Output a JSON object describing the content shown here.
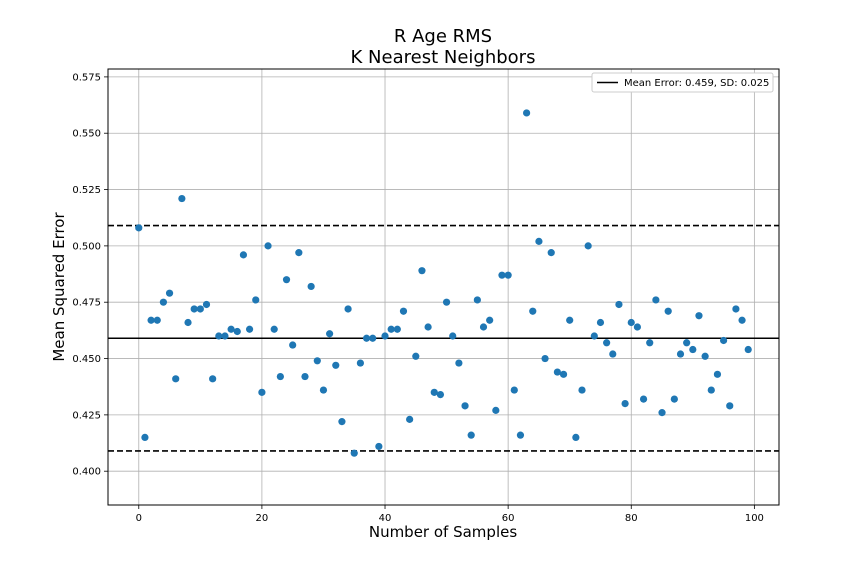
{
  "chart_data": {
    "type": "scatter",
    "title_lines": [
      "R Age RMS",
      "K Nearest Neighbors"
    ],
    "xlabel": "Number of Samples",
    "ylabel": "Mean Squared Error",
    "xlim": [
      -5,
      104
    ],
    "ylim": [
      0.385,
      0.5785
    ],
    "xticks": [
      0,
      20,
      40,
      60,
      80,
      100
    ],
    "yticks": [
      0.4,
      0.425,
      0.45,
      0.475,
      0.5,
      0.525,
      0.55,
      0.575
    ],
    "xtick_labels": [
      "0",
      "20",
      "40",
      "60",
      "80",
      "100"
    ],
    "ytick_labels": [
      "0.400",
      "0.425",
      "0.450",
      "0.475",
      "0.500",
      "0.525",
      "0.550",
      "0.575"
    ],
    "grid": true,
    "legend": {
      "placement": "top-right",
      "entries": [
        "Mean Error: 0.459, SD: 0.025"
      ]
    },
    "mean": 0.459,
    "sd": 0.025,
    "upper_band": 0.509,
    "lower_band": 0.409,
    "marker_color": "#1f77b4",
    "x": [
      0,
      1,
      2,
      3,
      4,
      5,
      6,
      7,
      8,
      9,
      10,
      11,
      12,
      13,
      14,
      15,
      16,
      17,
      18,
      19,
      20,
      21,
      22,
      23,
      24,
      25,
      26,
      27,
      28,
      29,
      30,
      31,
      32,
      33,
      34,
      35,
      36,
      37,
      38,
      39,
      40,
      41,
      42,
      43,
      44,
      45,
      46,
      47,
      48,
      49,
      50,
      51,
      52,
      53,
      54,
      55,
      56,
      57,
      58,
      59,
      60,
      61,
      62,
      63,
      64,
      65,
      66,
      67,
      68,
      69,
      70,
      71,
      72,
      73,
      74,
      75,
      76,
      77,
      78,
      79,
      80,
      81,
      82,
      83,
      84,
      85,
      86,
      87,
      88,
      89,
      90,
      91,
      92,
      93,
      94,
      95,
      96,
      97,
      98,
      99
    ],
    "y": [
      0.508,
      0.415,
      0.467,
      0.467,
      0.475,
      0.479,
      0.441,
      0.521,
      0.466,
      0.472,
      0.472,
      0.474,
      0.441,
      0.46,
      0.46,
      0.463,
      0.462,
      0.496,
      0.463,
      0.476,
      0.435,
      0.5,
      0.463,
      0.442,
      0.485,
      0.456,
      0.497,
      0.442,
      0.482,
      0.449,
      0.436,
      0.461,
      0.447,
      0.422,
      0.472,
      0.408,
      0.448,
      0.459,
      0.459,
      0.411,
      0.46,
      0.463,
      0.463,
      0.471,
      0.423,
      0.451,
      0.489,
      0.464,
      0.435,
      0.434,
      0.475,
      0.46,
      0.448,
      0.429,
      0.416,
      0.476,
      0.464,
      0.467,
      0.427,
      0.487,
      0.487,
      0.436,
      0.416,
      0.559,
      0.471,
      0.502,
      0.45,
      0.497,
      0.444,
      0.443,
      0.467,
      0.415,
      0.436,
      0.5,
      0.46,
      0.466,
      0.457,
      0.452,
      0.474,
      0.43,
      0.466,
      0.464,
      0.432,
      0.457,
      0.476,
      0.426,
      0.471,
      0.432,
      0.452,
      0.457,
      0.454,
      0.469,
      0.451,
      0.436,
      0.443,
      0.458,
      0.429,
      0.472,
      0.467,
      0.454
    ]
  }
}
